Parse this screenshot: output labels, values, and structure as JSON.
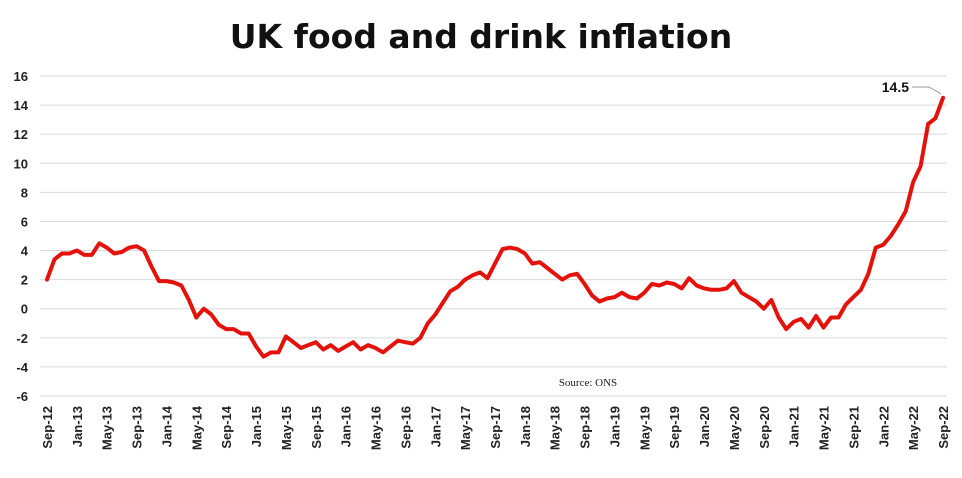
{
  "title": "UK food and drink inflation",
  "source": "Source: ONS",
  "callout_label": "14.5",
  "colors": {
    "line": "#e3120b",
    "grid": "#d9d9d9",
    "text": "#222222"
  },
  "chart_data": {
    "type": "line",
    "title": "UK food and drink inflation",
    "xlabel": "",
    "ylabel": "",
    "ylim": [
      -6,
      16
    ],
    "yticks": [
      -6,
      -4,
      -2,
      0,
      2,
      4,
      6,
      8,
      10,
      12,
      14,
      16
    ],
    "grid": true,
    "xtick_labels": [
      "Sep-12",
      "Jan-13",
      "May-13",
      "Sep-13",
      "Jan-14",
      "May-14",
      "Sep-14",
      "Jan-15",
      "May-15",
      "Sep-15",
      "Jan-16",
      "May-16",
      "Sep-16",
      "Jan-17",
      "May-17",
      "Sep-17",
      "Jan-18",
      "May-18",
      "Sep-18",
      "Jan-19",
      "May-19",
      "Sep-19",
      "Jan-20",
      "May-20",
      "Sep-20",
      "Jan-21",
      "May-21",
      "Sep-21",
      "Jan-22",
      "May-22",
      "Sep-22"
    ],
    "x_start": "Sep-12",
    "x_end": "Sep-22",
    "series": [
      {
        "values": [
          2.0,
          3.4,
          3.8,
          3.8,
          4.0,
          3.7,
          3.7,
          4.5,
          4.2,
          3.8,
          3.9,
          4.2,
          4.3,
          4.0,
          2.9,
          1.9,
          1.9,
          1.8,
          1.6,
          0.6,
          -0.6,
          0.0,
          -0.4,
          -1.1,
          -1.4,
          -1.4,
          -1.7,
          -1.7,
          -2.6,
          -3.3,
          -3.0,
          -3.0,
          -1.9,
          -2.3,
          -2.7,
          -2.5,
          -2.3,
          -2.8,
          -2.5,
          -2.9,
          -2.6,
          -2.3,
          -2.8,
          -2.5,
          -2.7,
          -3.0,
          -2.6,
          -2.2,
          -2.3,
          -2.4,
          -2.0,
          -1.0,
          -0.4,
          0.4,
          1.2,
          1.5,
          2.0,
          2.3,
          2.5,
          2.1,
          3.1,
          4.1,
          4.2,
          4.1,
          3.8,
          3.1,
          3.2,
          2.8,
          2.4,
          2.0,
          2.3,
          2.4,
          1.7,
          0.9,
          0.5,
          0.7,
          0.8,
          1.1,
          0.8,
          0.7,
          1.1,
          1.7,
          1.6,
          1.8,
          1.7,
          1.4,
          2.1,
          1.6,
          1.4,
          1.3,
          1.3,
          1.4,
          1.9,
          1.1,
          0.8,
          0.5,
          0.0,
          0.6,
          -0.6,
          -1.4,
          -0.9,
          -0.7,
          -1.3,
          -0.5,
          -1.3,
          -0.6,
          -0.6,
          0.3,
          0.8,
          1.3,
          2.4,
          4.2,
          4.4,
          5.0,
          5.8,
          6.7,
          8.7,
          9.8,
          12.7,
          13.1,
          14.5
        ]
      }
    ],
    "annotations": [
      {
        "label": "14.5",
        "x": "Sep-22",
        "y": 14.5
      }
    ]
  }
}
